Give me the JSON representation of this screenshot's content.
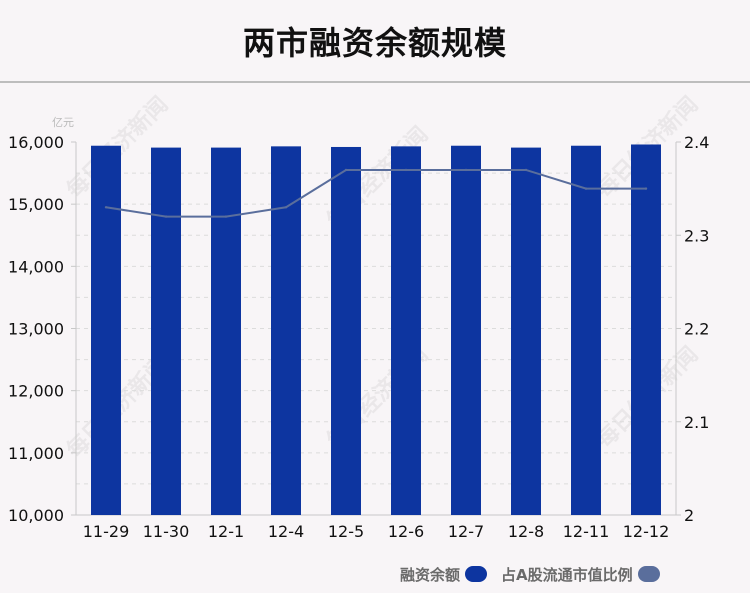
{
  "title": "两市融资余额规模",
  "watermark": "每日经济新闻",
  "legend": {
    "bar_label": "融资余额",
    "line_label": "占A股流通市值比例"
  },
  "chart_data": {
    "type": "bar",
    "title": "两市融资余额规模",
    "categories": [
      "11-29",
      "11-30",
      "12-1",
      "12-4",
      "12-5",
      "12-6",
      "12-7",
      "12-8",
      "12-11",
      "12-12"
    ],
    "y_unit": "亿元",
    "ylim": [
      10000,
      16000
    ],
    "y_ticks": [
      "10,000",
      "11,000",
      "12,000",
      "13,000",
      "14,000",
      "15,000",
      "16,000"
    ],
    "y_tick_values": [
      10000,
      11000,
      12000,
      13000,
      14000,
      15000,
      16000
    ],
    "y2lim": [
      2,
      2.4
    ],
    "y2_ticks": [
      "2",
      "2.1",
      "2.2",
      "2.3",
      "2.4"
    ],
    "y2_tick_values": [
      2.0,
      2.1,
      2.2,
      2.3,
      2.4
    ],
    "grid": true,
    "series": [
      {
        "name": "融资余额",
        "type": "bar",
        "axis": "left",
        "color": "#0d35a0",
        "values": [
          15940,
          15910,
          15910,
          15930,
          15920,
          15930,
          15940,
          15910,
          15940,
          15960
        ]
      },
      {
        "name": "占A股流通市值比例",
        "type": "line",
        "axis": "right",
        "color": "#5a6e9c",
        "values": [
          2.33,
          2.32,
          2.32,
          2.33,
          2.37,
          2.37,
          2.37,
          2.37,
          2.35,
          2.35
        ]
      }
    ]
  }
}
